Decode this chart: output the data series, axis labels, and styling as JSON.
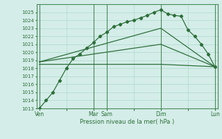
{
  "background_color": "#d4ede8",
  "grid_color": "#b0d8cc",
  "line_color": "#2d6e3a",
  "spine_color": "#4a8a5a",
  "ylim": [
    1013,
    1026
  ],
  "yticks": [
    1013,
    1014,
    1015,
    1016,
    1017,
    1018,
    1019,
    1020,
    1021,
    1022,
    1023,
    1024,
    1025
  ],
  "xlabel": "Pression niveau de la mer( hPa )",
  "xtick_labels": [
    "Ven",
    "",
    "Mar",
    "Sam",
    "",
    "Dim",
    "",
    "Lun"
  ],
  "xtick_positions": [
    0,
    2,
    4,
    5,
    7,
    9,
    11,
    13
  ],
  "vlines": [
    0,
    4,
    5,
    9,
    13
  ],
  "xlim": [
    -0.2,
    13.2
  ],
  "series1_x": [
    0,
    0.5,
    1,
    1.5,
    2,
    2.5,
    3,
    3.5,
    4,
    4.5,
    5,
    5.5,
    6,
    6.5,
    7,
    7.5,
    8,
    8.5,
    9,
    9.5,
    10,
    10.5,
    11,
    11.5,
    12,
    12.5,
    13
  ],
  "series1_y": [
    1013,
    1014,
    1015,
    1016.5,
    1018,
    1019.2,
    1019.8,
    1020.5,
    1021.2,
    1022.0,
    1022.5,
    1023.2,
    1023.5,
    1023.8,
    1024.0,
    1024.3,
    1024.6,
    1025.0,
    1025.3,
    1024.8,
    1024.6,
    1024.5,
    1022.8,
    1022.0,
    1021.0,
    1019.8,
    1018.2
  ],
  "series2_x": [
    0,
    9,
    13
  ],
  "series2_y": [
    1018.5,
    1018.5,
    1018.2
  ],
  "series3_x": [
    0,
    9,
    13
  ],
  "series3_y": [
    1018.8,
    1021.0,
    1018.2
  ],
  "series4_x": [
    0,
    9,
    13
  ],
  "series4_y": [
    1018.8,
    1023.0,
    1018.2
  ]
}
